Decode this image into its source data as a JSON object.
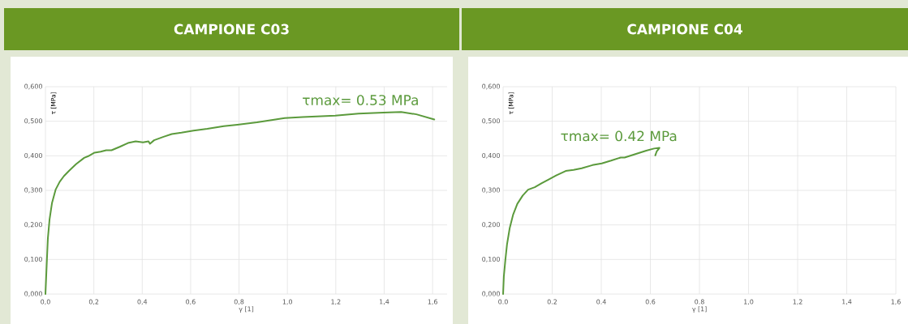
{
  "chart_data": [
    {
      "type": "line",
      "title": "CAMPIONE C03",
      "xlabel": "γ [1]",
      "ylabel": "τ [MPa]",
      "x": [
        0,
        0.005,
        0.01,
        0.017,
        0.027,
        0.042,
        0.059,
        0.076,
        0.098,
        0.127,
        0.16,
        0.177,
        0.203,
        0.228,
        0.251,
        0.273,
        0.307,
        0.341,
        0.373,
        0.403,
        0.426,
        0.432,
        0.449,
        0.488,
        0.522,
        0.562,
        0.612,
        0.669,
        0.737,
        0.793,
        0.874,
        0.989,
        1.063,
        1.198,
        1.294,
        1.397,
        1.47,
        1.533,
        1.607
      ],
      "series": [
        {
          "color": "#5b9a3c",
          "values": [
            0,
            0.082,
            0.161,
            0.216,
            0.263,
            0.302,
            0.325,
            0.341,
            0.357,
            0.376,
            0.394,
            0.399,
            0.409,
            0.412,
            0.416,
            0.416,
            0.426,
            0.437,
            0.442,
            0.439,
            0.442,
            0.435,
            0.445,
            0.455,
            0.463,
            0.467,
            0.473,
            0.478,
            0.486,
            0.49,
            0.497,
            0.509,
            0.512,
            0.516,
            0.522,
            0.525,
            0.527,
            0.52,
            0.505
          ]
        }
      ],
      "xlim": [
        0,
        1.66
      ],
      "ylim": [
        0,
        0.6
      ],
      "xticks": [
        {
          "value": 0,
          "label": "0,0"
        },
        {
          "value": 0.2,
          "label": "0,2"
        },
        {
          "value": 0.4,
          "label": "0,4"
        },
        {
          "value": 0.6,
          "label": "0,6"
        },
        {
          "value": 0.8,
          "label": "0,8"
        },
        {
          "value": 1.0,
          "label": "1,0"
        },
        {
          "value": 1.2,
          "label": "1,2"
        },
        {
          "value": 1.4,
          "label": "1,4"
        },
        {
          "value": 1.6,
          "label": "1,6"
        }
      ],
      "yticks": [
        {
          "value": 0,
          "label": "0,000"
        },
        {
          "value": 0.1,
          "label": "0,100"
        },
        {
          "value": 0.2,
          "label": "0,200"
        },
        {
          "value": 0.3,
          "label": "0,300"
        },
        {
          "value": 0.4,
          "label": "0,400"
        },
        {
          "value": 0.5,
          "label": "0,500"
        },
        {
          "value": 0.6,
          "label": "0,600"
        }
      ],
      "grid": true,
      "annotations": [
        {
          "text": "τmax= 0.53 MPa",
          "x": 1.47,
          "y": 0.527
        }
      ]
    },
    {
      "type": "line",
      "title": "CAMPIONE C04",
      "xlabel": "γ [1]",
      "ylabel": "τ [MPa]",
      "x": [
        0,
        0.003,
        0.009,
        0.016,
        0.027,
        0.041,
        0.058,
        0.08,
        0.102,
        0.129,
        0.156,
        0.184,
        0.216,
        0.255,
        0.287,
        0.32,
        0.364,
        0.402,
        0.44,
        0.479,
        0.495,
        0.539,
        0.583,
        0.615,
        0.637,
        0.626,
        0.62
      ],
      "series": [
        {
          "color": "#5b9a3c",
          "values": [
            0,
            0.051,
            0.097,
            0.144,
            0.191,
            0.23,
            0.261,
            0.285,
            0.302,
            0.309,
            0.32,
            0.331,
            0.343,
            0.356,
            0.359,
            0.364,
            0.373,
            0.378,
            0.386,
            0.395,
            0.395,
            0.405,
            0.415,
            0.421,
            0.423,
            0.413,
            0.401
          ]
        }
      ],
      "xlim": [
        0,
        1.6
      ],
      "ylim": [
        0,
        0.6
      ],
      "xticks": [
        {
          "value": 0,
          "label": "0.0"
        },
        {
          "value": 0.2,
          "label": "0.2"
        },
        {
          "value": 0.4,
          "label": "0.4"
        },
        {
          "value": 0.6,
          "label": "0.6"
        },
        {
          "value": 0.8,
          "label": "0.8"
        },
        {
          "value": 1.0,
          "label": "1,0"
        },
        {
          "value": 1.2,
          "label": "1,2"
        },
        {
          "value": 1.4,
          "label": "1,4"
        },
        {
          "value": 1.6,
          "label": "1,6"
        }
      ],
      "yticks": [
        {
          "value": 0,
          "label": "0,000"
        },
        {
          "value": 0.1,
          "label": "0,100"
        },
        {
          "value": 0.2,
          "label": "0,200"
        },
        {
          "value": 0.3,
          "label": "0,300"
        },
        {
          "value": 0.4,
          "label": "0,400"
        },
        {
          "value": 0.5,
          "label": "0,500"
        },
        {
          "value": 0.6,
          "label": "0,600"
        }
      ],
      "grid": true,
      "annotations": [
        {
          "text": "τmax= 0.42 MPa",
          "x": 0.637,
          "y": 0.423
        }
      ]
    }
  ]
}
